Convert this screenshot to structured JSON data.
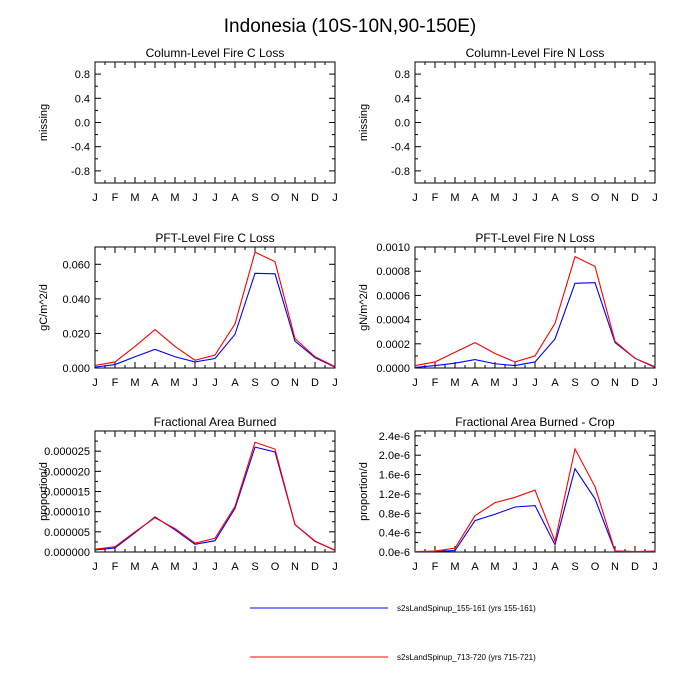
{
  "title": "Indonesia (10S-10N,90-150E)",
  "months": [
    "J",
    "F",
    "M",
    "A",
    "M",
    "J",
    "J",
    "A",
    "S",
    "O",
    "N",
    "D",
    "J"
  ],
  "colors": {
    "series1": "#0000ff",
    "series2": "#ff0000",
    "axis": "#000000"
  },
  "legend": [
    {
      "label": "s2sLandSpinup_155-161 (yrs 155-161)",
      "color": "#0000ff"
    },
    {
      "label": "s2sLandSpinup_713-720 (yrs 715-721)",
      "color": "#ff0000"
    }
  ],
  "chart_data": [
    {
      "id": "fire-c-loss-col",
      "type": "line",
      "title": "Column-Level Fire C Loss",
      "xlabel": "",
      "ylabel": "missing",
      "ylim": [
        -1,
        1
      ],
      "yticks": [
        "0.8",
        "0.4",
        "0.0",
        "-0.4",
        "-0.8"
      ],
      "ytick_values": [
        0.8,
        0.4,
        0.0,
        -0.4,
        -0.8
      ],
      "series": []
    },
    {
      "id": "fire-n-loss-col",
      "type": "line",
      "title": "Column-Level Fire N Loss",
      "xlabel": "",
      "ylabel": "missing",
      "ylim": [
        -1,
        1
      ],
      "yticks": [
        "0.8",
        "0.4",
        "0.0",
        "-0.4",
        "-0.8"
      ],
      "ytick_values": [
        0.8,
        0.4,
        0.0,
        -0.4,
        -0.8
      ],
      "series": []
    },
    {
      "id": "fire-c-loss-pft",
      "type": "line",
      "title": "PFT-Level Fire C Loss",
      "xlabel": "",
      "ylabel": "gC/m^2/d",
      "ylim": [
        0,
        0.07
      ],
      "yticks": [
        "0.060",
        "0.040",
        "0.020",
        "0.000"
      ],
      "ytick_values": [
        0.06,
        0.04,
        0.02,
        0.0
      ],
      "series": [
        {
          "name": "s2sLandSpinup_155-161 (yrs 155-161)",
          "color": "#0000ff",
          "values": [
            0.0005,
            0.002,
            0.0065,
            0.0108,
            0.0065,
            0.0035,
            0.0055,
            0.0195,
            0.0548,
            0.0545,
            0.0155,
            0.006,
            0.0005
          ]
        },
        {
          "name": "s2sLandSpinup_713-720 (yrs 715-721)",
          "color": "#ff0000",
          "values": [
            0.0015,
            0.0035,
            0.0125,
            0.0222,
            0.0125,
            0.0045,
            0.0075,
            0.0255,
            0.067,
            0.0615,
            0.017,
            0.0065,
            0.0008
          ]
        }
      ]
    },
    {
      "id": "fire-n-loss-pft",
      "type": "line",
      "title": "PFT-Level Fire N Loss",
      "xlabel": "",
      "ylabel": "gN/m^2/d",
      "ylim": [
        0,
        0.001
      ],
      "yticks": [
        "0.0010",
        "0.0008",
        "0.0006",
        "0.0004",
        "0.0002",
        "0.0000"
      ],
      "ytick_values": [
        0.001,
        0.0008,
        0.0006,
        0.0004,
        0.0002,
        0.0
      ],
      "series": [
        {
          "name": "s2sLandSpinup_155-161 (yrs 155-161)",
          "color": "#0000ff",
          "values": [
            5e-06,
            2e-05,
            4e-05,
            7e-05,
            3.5e-05,
            2e-05,
            5e-05,
            0.00024,
            0.0007,
            0.000705,
            0.00021,
            8e-05,
            5e-06
          ]
        },
        {
          "name": "s2sLandSpinup_713-720 (yrs 715-721)",
          "color": "#ff0000",
          "values": [
            2e-05,
            5e-05,
            0.00013,
            0.00021,
            0.00012,
            5e-05,
            0.0001,
            0.00037,
            0.00092,
            0.00084,
            0.00022,
            8e-05,
            1e-05
          ]
        }
      ]
    },
    {
      "id": "fractional-area-burned",
      "type": "line",
      "title": "Fractional Area Burned",
      "xlabel": "",
      "ylabel": "proportion/d",
      "ylim": [
        0,
        3e-05
      ],
      "yticks": [
        "0.000025",
        "0.000020",
        "0.000015",
        "0.000010",
        "0.000005",
        "0.000000"
      ],
      "ytick_values": [
        2.5e-05,
        2e-05,
        1.5e-05,
        1e-05,
        5e-06,
        0.0
      ],
      "series": [
        {
          "name": "s2sLandSpinup_155-161 (yrs 155-161)",
          "color": "#0000ff",
          "values": [
            5e-07,
            1e-06,
            4.8e-06,
            8.7e-06,
            5.5e-06,
            1.9e-06,
            2.8e-06,
            1.08e-05,
            2.6e-05,
            2.48e-05,
            6.8e-06,
            2.7e-06,
            4e-07
          ]
        },
        {
          "name": "s2sLandSpinup_713-720 (yrs 715-721)",
          "color": "#ff0000",
          "values": [
            7e-07,
            1.3e-06,
            5e-06,
            8.5e-06,
            5.8e-06,
            2.2e-06,
            3.4e-06,
            1.13e-05,
            2.72e-05,
            2.55e-05,
            6.8e-06,
            2.6e-06,
            5e-07
          ]
        }
      ]
    },
    {
      "id": "fractional-area-burned-crop",
      "type": "line",
      "title": "Fractional Area Burned - Crop",
      "xlabel": "",
      "ylabel": "proportion/d",
      "ylim": [
        0,
        2.5e-06
      ],
      "yticks": [
        "2.4e-6",
        "2.0e-6",
        "1.6e-6",
        "1.2e-6",
        "0.8e-6",
        "0.4e-6",
        "0.0e-6"
      ],
      "ytick_values": [
        2.4e-06,
        2e-06,
        1.6e-06,
        1.2e-06,
        8e-07,
        4e-07,
        0.0
      ],
      "series": [
        {
          "name": "s2sLandSpinup_155-161 (yrs 155-161)",
          "color": "#0000ff",
          "values": [
            1e-08,
            1e-08,
            3e-08,
            6.5e-07,
            7.8e-07,
            9.3e-07,
            9.6e-07,
            1.5e-07,
            1.72e-06,
            1.1e-06,
            2e-08,
            1e-08,
            1e-08
          ]
        },
        {
          "name": "s2sLandSpinup_713-720 (yrs 715-721)",
          "color": "#ff0000",
          "values": [
            1e-08,
            2e-08,
            8e-08,
            7.5e-07,
            1.02e-06,
            1.13e-06,
            1.28e-06,
            2.2e-07,
            2.13e-06,
            1.35e-06,
            2e-08,
            1e-08,
            2e-08
          ]
        }
      ]
    }
  ]
}
